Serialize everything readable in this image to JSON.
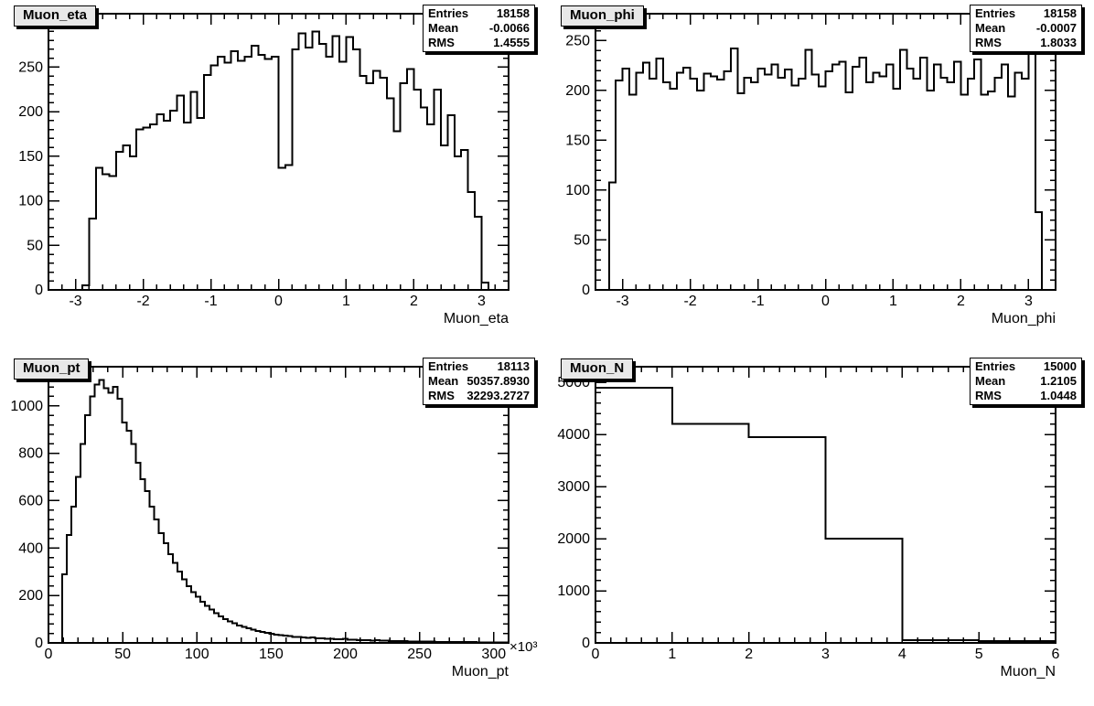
{
  "style": {
    "background": "#ffffff",
    "line_color": "#000000",
    "title_box_fill": "#e8e8e8",
    "stats_box_fill": "#ffffff"
  },
  "stats_labels": {
    "entries": "Entries",
    "mean": "Mean",
    "rms": "RMS"
  },
  "chart_data": [
    {
      "type": "bar",
      "style": "step-histogram",
      "title": "Muon_eta",
      "xlabel": "Muon_eta",
      "ylabel": "",
      "xlim": [
        -3.4,
        3.4
      ],
      "ylim": [
        0,
        310
      ],
      "x_ticks": [
        -3,
        -2,
        -1,
        0,
        1,
        2,
        3
      ],
      "x_tick_labels": [
        "-3",
        "-2",
        "-1",
        "0",
        "1",
        "2",
        "3"
      ],
      "x_minor_step": 0.2,
      "y_ticks": [
        0,
        50,
        100,
        150,
        200,
        250,
        300
      ],
      "y_tick_labels": [
        "0",
        "50",
        "100",
        "150",
        "200",
        "250",
        "300"
      ],
      "y_minor_step": 10,
      "x_exponent": "",
      "grid": false,
      "legend": "none",
      "stats": {
        "entries": "18158",
        "mean": "-0.0066",
        "rms": "1.4555"
      },
      "bins": {
        "x_start": -3.4,
        "bin_width": 0.1,
        "counts": [
          0,
          0,
          0,
          0,
          0,
          5,
          80,
          137,
          130,
          128,
          155,
          162,
          150,
          180,
          182,
          186,
          197,
          190,
          201,
          218,
          188,
          222,
          193,
          241,
          252,
          262,
          255,
          268,
          257,
          262,
          274,
          264,
          259,
          262,
          137,
          140,
          270,
          288,
          272,
          290,
          276,
          262,
          285,
          256,
          284,
          270,
          240,
          232,
          246,
          238,
          215,
          178,
          232,
          248,
          225,
          205,
          186,
          225,
          162,
          196,
          150,
          157,
          110,
          82,
          8,
          0,
          0,
          0
        ]
      }
    },
    {
      "type": "bar",
      "style": "step-histogram",
      "title": "Muon_phi",
      "xlabel": "Muon_phi",
      "ylabel": "",
      "xlim": [
        -3.4,
        3.4
      ],
      "ylim": [
        0,
        277
      ],
      "x_ticks": [
        -3,
        -2,
        -1,
        0,
        1,
        2,
        3
      ],
      "x_tick_labels": [
        "-3",
        "-2",
        "-1",
        "0",
        "1",
        "2",
        "3"
      ],
      "x_minor_step": 0.2,
      "y_ticks": [
        0,
        50,
        100,
        150,
        200,
        250
      ],
      "y_tick_labels": [
        "0",
        "50",
        "100",
        "150",
        "200",
        "250"
      ],
      "y_minor_step": 10,
      "x_exponent": "",
      "grid": false,
      "legend": "none",
      "stats": {
        "entries": "18158",
        "mean": "-0.0007",
        "rms": "1.8033"
      },
      "bins": {
        "x_start": -3.2,
        "bin_width": 0.1,
        "counts": [
          108,
          210,
          222,
          196,
          218,
          228,
          212,
          232,
          208,
          202,
          218,
          223,
          212,
          200,
          217,
          214,
          211,
          219,
          242,
          197,
          213,
          208,
          222,
          216,
          226,
          213,
          221,
          205,
          212,
          241,
          216,
          204,
          219,
          226,
          229,
          198,
          224,
          233,
          208,
          218,
          214,
          226,
          202,
          241,
          222,
          212,
          233,
          200,
          226,
          213,
          208,
          229,
          196,
          212,
          231,
          196,
          199,
          213,
          226,
          194,
          218,
          212,
          243,
          78
        ]
      }
    },
    {
      "type": "bar",
      "style": "step-histogram",
      "title": "Muon_pt",
      "xlabel": "Muon_pt",
      "ylabel": "",
      "xlim": [
        0,
        310000
      ],
      "ylim": [
        0,
        1165
      ],
      "x_ticks": [
        0,
        50000,
        100000,
        150000,
        200000,
        250000,
        300000
      ],
      "x_tick_labels": [
        "0",
        "50",
        "100",
        "150",
        "200",
        "250",
        "300"
      ],
      "x_minor_step": 10000,
      "y_ticks": [
        0,
        200,
        400,
        600,
        800,
        1000
      ],
      "y_tick_labels": [
        "0",
        "200",
        "400",
        "600",
        "800",
        "1000"
      ],
      "y_minor_step": 40,
      "x_exponent": "×10³",
      "grid": false,
      "legend": "none",
      "stats": {
        "entries": "18113",
        "mean": "50357.8930",
        "rms": "32293.2727"
      },
      "bins": {
        "x_start": 0,
        "bin_width": 3100,
        "counts": [
          0,
          0,
          0,
          290,
          455,
          575,
          700,
          840,
          960,
          1040,
          1090,
          1110,
          1075,
          1055,
          1080,
          1030,
          930,
          895,
          840,
          760,
          690,
          640,
          575,
          520,
          462,
          420,
          374,
          338,
          300,
          268,
          240,
          214,
          194,
          174,
          156,
          140,
          126,
          112,
          100,
          90,
          82,
          74,
          67,
          61,
          55,
          50,
          46,
          42,
          38,
          35,
          33,
          30,
          28,
          26,
          25,
          23,
          22,
          24,
          20,
          19,
          18,
          17,
          16,
          15,
          17,
          14,
          13,
          12,
          12,
          11,
          10,
          12,
          9,
          9,
          8,
          8,
          7,
          7,
          6,
          6,
          6,
          5,
          5,
          5,
          4,
          4,
          4,
          4,
          3,
          3,
          3,
          3,
          3,
          2,
          2,
          2,
          2,
          2,
          2,
          2
        ]
      }
    },
    {
      "type": "bar",
      "style": "step-histogram",
      "title": "Muon_N",
      "xlabel": "Muon_N",
      "ylabel": "",
      "xlim": [
        0,
        6
      ],
      "ylim": [
        0,
        5300
      ],
      "x_ticks": [
        0,
        1,
        2,
        3,
        4,
        5,
        6
      ],
      "x_tick_labels": [
        "0",
        "1",
        "2",
        "3",
        "4",
        "5",
        "6"
      ],
      "x_minor_step": 0.2,
      "y_ticks": [
        0,
        1000,
        2000,
        3000,
        4000,
        5000
      ],
      "y_tick_labels": [
        "0",
        "1000",
        "2000",
        "3000",
        "4000",
        "5000"
      ],
      "y_minor_step": 200,
      "x_exponent": "",
      "grid": false,
      "legend": "none",
      "stats": {
        "entries": "15000",
        "mean": "1.2105",
        "rms": "1.0448"
      },
      "bins": {
        "x_start": 0,
        "bin_width": 1,
        "counts": [
          4900,
          4200,
          3950,
          2000,
          55,
          35
        ]
      }
    }
  ]
}
